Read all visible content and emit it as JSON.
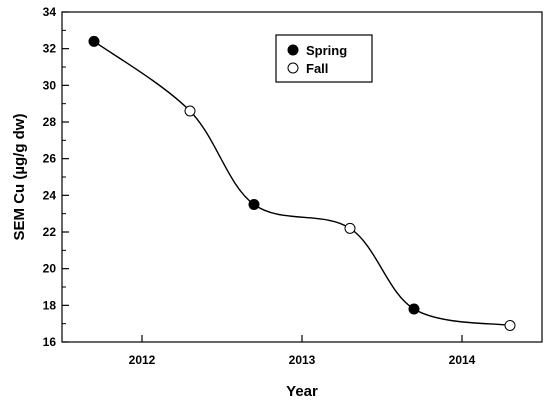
{
  "chart_data": {
    "type": "line",
    "xlabel": "Year",
    "ylabel": "SEM Cu (µg/g dw)",
    "xlim": [
      2011.5,
      2014.5
    ],
    "ylim": [
      16,
      34
    ],
    "x_ticks": [
      2012,
      2013,
      2014
    ],
    "x_tick_labels": [
      "2012",
      "2013",
      "2014"
    ],
    "y_ticks": [
      16,
      18,
      20,
      22,
      24,
      26,
      28,
      30,
      32,
      34
    ],
    "y_tick_labels": [
      "16",
      "18",
      "20",
      "22",
      "24",
      "26",
      "28",
      "30",
      "32",
      "34"
    ],
    "grid": false,
    "legend_position": "top-center",
    "line_points": [
      {
        "x": 2011.7,
        "y": 32.4
      },
      {
        "x": 2012.3,
        "y": 28.6
      },
      {
        "x": 2012.7,
        "y": 23.5
      },
      {
        "x": 2013.3,
        "y": 22.2
      },
      {
        "x": 2013.7,
        "y": 17.8
      },
      {
        "x": 2014.3,
        "y": 16.9
      }
    ],
    "series": [
      {
        "name": "Spring",
        "marker": "filled",
        "x": [
          2011.7,
          2012.7,
          2013.7
        ],
        "y": [
          32.4,
          23.5,
          17.8
        ]
      },
      {
        "name": "Fall",
        "marker": "open",
        "x": [
          2012.3,
          2013.3,
          2014.3
        ],
        "y": [
          28.6,
          22.2,
          16.9
        ]
      }
    ]
  }
}
